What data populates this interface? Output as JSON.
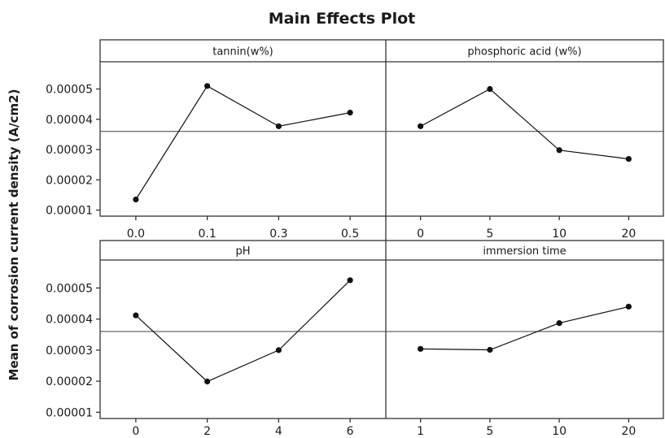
{
  "chart_data": {
    "type": "line",
    "title": "Main Effects Plot",
    "ylabel": "Mean of corrosion current density (A/cm2)",
    "ylim": [
      8e-06,
      5.9e-05
    ],
    "yticks": [
      "0.00001",
      "0.00002",
      "0.00003",
      "0.00004",
      "0.00005"
    ],
    "ytick_values": [
      1e-05,
      2e-05,
      3e-05,
      4e-05,
      5e-05
    ],
    "overall_mean": 3.6e-05,
    "grid": false,
    "panels": [
      {
        "name": "tannin(w%)",
        "categories": [
          "0.0",
          "0.1",
          "0.3",
          "0.5"
        ],
        "values": [
          1.35e-05,
          5.1e-05,
          3.77e-05,
          4.22e-05
        ]
      },
      {
        "name": "phosphoric acid (w%)",
        "categories": [
          "0",
          "5",
          "10",
          "20"
        ],
        "values": [
          3.77e-05,
          5e-05,
          2.98e-05,
          2.69e-05
        ]
      },
      {
        "name": "pH",
        "categories": [
          "0",
          "2",
          "4",
          "6"
        ],
        "values": [
          4.12e-05,
          1.99e-05,
          3e-05,
          5.25e-05
        ]
      },
      {
        "name": "immersion time",
        "categories": [
          "1",
          "5",
          "10",
          "20"
        ],
        "values": [
          3.04e-05,
          3.01e-05,
          3.87e-05,
          4.4e-05
        ]
      }
    ]
  }
}
